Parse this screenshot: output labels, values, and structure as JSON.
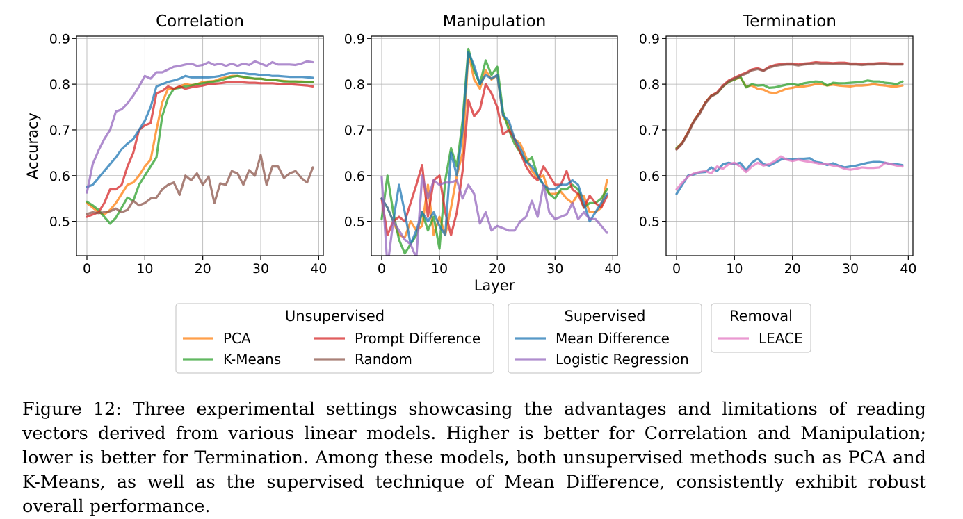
{
  "chart_data": [
    {
      "type": "line",
      "title": "Correlation",
      "xlabel": "",
      "ylabel": "Accuracy",
      "xlim": [
        -1.8,
        40.8
      ],
      "ylim": [
        0.425,
        0.905
      ],
      "xticks": [
        0,
        10,
        20,
        30,
        40
      ],
      "yticks": [
        0.5,
        0.6,
        0.7,
        0.8,
        0.9
      ],
      "ytick_labels": [
        "0.5",
        "0.6",
        "0.7",
        "0.8",
        "0.9"
      ],
      "grid": true,
      "series": [
        {
          "name": "PCA",
          "color": "#ff7f0e",
          "values": [
            0.54,
            0.53,
            0.52,
            0.515,
            0.525,
            0.54,
            0.56,
            0.58,
            0.585,
            0.6,
            0.62,
            0.635,
            0.7,
            0.76,
            0.79,
            0.79,
            0.795,
            0.8,
            0.798,
            0.8,
            0.805,
            0.806,
            0.807,
            0.812,
            0.815,
            0.818,
            0.818,
            0.815,
            0.813,
            0.812,
            0.812,
            0.81,
            0.81,
            0.808,
            0.807,
            0.806,
            0.806,
            0.806,
            0.805,
            0.805
          ]
        },
        {
          "name": "K-Means",
          "color": "#2ca02c",
          "values": [
            0.543,
            0.535,
            0.525,
            0.51,
            0.495,
            0.508,
            0.53,
            0.552,
            0.545,
            0.58,
            0.6,
            0.62,
            0.64,
            0.73,
            0.77,
            0.79,
            0.792,
            0.795,
            0.797,
            0.8,
            0.802,
            0.804,
            0.806,
            0.808,
            0.812,
            0.816,
            0.818,
            0.816,
            0.814,
            0.812,
            0.812,
            0.81,
            0.81,
            0.808,
            0.806,
            0.806,
            0.806,
            0.805,
            0.805,
            0.805
          ]
        },
        {
          "name": "Prompt Difference",
          "color": "#d62728",
          "values": [
            0.51,
            0.515,
            0.52,
            0.54,
            0.57,
            0.57,
            0.58,
            0.62,
            0.65,
            0.7,
            0.71,
            0.715,
            0.78,
            0.785,
            0.795,
            0.79,
            0.795,
            0.79,
            0.793,
            0.795,
            0.797,
            0.8,
            0.801,
            0.802,
            0.804,
            0.805,
            0.805,
            0.804,
            0.803,
            0.803,
            0.802,
            0.802,
            0.802,
            0.801,
            0.8,
            0.8,
            0.799,
            0.798,
            0.797,
            0.795
          ]
        },
        {
          "name": "Random",
          "color": "#8c564b",
          "values": [
            0.516,
            0.52,
            0.518,
            0.52,
            0.522,
            0.528,
            0.52,
            0.525,
            0.545,
            0.535,
            0.54,
            0.55,
            0.552,
            0.57,
            0.58,
            0.585,
            0.558,
            0.6,
            0.59,
            0.605,
            0.58,
            0.598,
            0.54,
            0.583,
            0.58,
            0.61,
            0.605,
            0.58,
            0.612,
            0.6,
            0.645,
            0.58,
            0.62,
            0.62,
            0.595,
            0.605,
            0.61,
            0.595,
            0.585,
            0.618
          ]
        },
        {
          "name": "Mean Difference",
          "color": "#1f77b4",
          "values": [
            0.575,
            0.58,
            0.595,
            0.61,
            0.625,
            0.64,
            0.658,
            0.67,
            0.68,
            0.7,
            0.72,
            0.75,
            0.795,
            0.8,
            0.805,
            0.808,
            0.812,
            0.818,
            0.815,
            0.815,
            0.815,
            0.815,
            0.816,
            0.818,
            0.822,
            0.825,
            0.825,
            0.824,
            0.822,
            0.822,
            0.82,
            0.82,
            0.818,
            0.818,
            0.817,
            0.816,
            0.816,
            0.816,
            0.815,
            0.814
          ]
        },
        {
          "name": "Logistic Regression",
          "color": "#9467bd",
          "values": [
            0.563,
            0.625,
            0.655,
            0.68,
            0.7,
            0.74,
            0.745,
            0.758,
            0.775,
            0.795,
            0.818,
            0.812,
            0.826,
            0.826,
            0.832,
            0.838,
            0.84,
            0.843,
            0.845,
            0.84,
            0.842,
            0.848,
            0.842,
            0.845,
            0.84,
            0.845,
            0.84,
            0.845,
            0.842,
            0.85,
            0.845,
            0.84,
            0.848,
            0.843,
            0.843,
            0.843,
            0.842,
            0.845,
            0.85,
            0.848
          ]
        }
      ]
    },
    {
      "type": "line",
      "title": "Manipulation",
      "xlabel": "Layer",
      "ylabel": "",
      "xlim": [
        -1.8,
        40.8
      ],
      "ylim": [
        0.425,
        0.905
      ],
      "xticks": [
        0,
        10,
        20,
        30,
        40
      ],
      "yticks": [
        0.5,
        0.6,
        0.7,
        0.8,
        0.9
      ],
      "ytick_labels": [
        "0.5",
        "0.6",
        "0.7",
        "0.8",
        "0.9"
      ],
      "grid": true,
      "series": [
        {
          "name": "PCA",
          "color": "#ff7f0e",
          "values": [
            0.55,
            0.53,
            0.5,
            0.47,
            0.465,
            0.5,
            0.48,
            0.49,
            0.58,
            0.47,
            0.51,
            0.47,
            0.53,
            0.6,
            0.65,
            0.87,
            0.81,
            0.79,
            0.83,
            0.81,
            0.82,
            0.73,
            0.71,
            0.68,
            0.67,
            0.64,
            0.61,
            0.595,
            0.6,
            0.56,
            0.56,
            0.565,
            0.55,
            0.54,
            0.56,
            0.555,
            0.52,
            0.52,
            0.53,
            0.59
          ]
        },
        {
          "name": "K-Means",
          "color": "#2ca02c",
          "values": [
            0.505,
            0.6,
            0.52,
            0.46,
            0.43,
            0.45,
            0.47,
            0.52,
            0.48,
            0.51,
            0.44,
            0.59,
            0.66,
            0.62,
            0.72,
            0.877,
            0.83,
            0.8,
            0.852,
            0.82,
            0.838,
            0.74,
            0.7,
            0.67,
            0.65,
            0.63,
            0.64,
            0.6,
            0.58,
            0.56,
            0.55,
            0.57,
            0.57,
            0.58,
            0.57,
            0.53,
            0.54,
            0.54,
            0.55,
            0.57
          ]
        },
        {
          "name": "Prompt Difference",
          "color": "#d62728",
          "values": [
            0.55,
            0.47,
            0.5,
            0.51,
            0.5,
            0.54,
            0.58,
            0.623,
            0.51,
            0.59,
            0.6,
            0.52,
            0.47,
            0.52,
            0.61,
            0.765,
            0.73,
            0.745,
            0.8,
            0.78,
            0.75,
            0.69,
            0.7,
            0.68,
            0.65,
            0.62,
            0.6,
            0.59,
            0.62,
            0.6,
            0.58,
            0.58,
            0.61,
            0.57,
            0.56,
            0.53,
            0.556,
            0.54,
            0.53,
            0.555
          ]
        },
        {
          "name": "Random",
          "color": "#8c564b",
          "values": []
        },
        {
          "name": "Mean Difference",
          "color": "#1f77b4",
          "values": [
            0.55,
            0.53,
            0.5,
            0.58,
            0.52,
            0.45,
            0.48,
            0.52,
            0.5,
            0.52,
            0.49,
            0.47,
            0.65,
            0.6,
            0.7,
            0.87,
            0.84,
            0.8,
            0.82,
            0.812,
            0.82,
            0.732,
            0.72,
            0.68,
            0.66,
            0.63,
            0.62,
            0.6,
            0.58,
            0.57,
            0.57,
            0.58,
            0.58,
            0.59,
            0.58,
            0.54,
            0.5,
            0.52,
            0.54,
            0.56
          ]
        },
        {
          "name": "Logistic Regression",
          "color": "#9467bd",
          "values": [
            0.597,
            0.4,
            0.5,
            0.48,
            0.46,
            0.45,
            0.42,
            0.6,
            0.55,
            0.59,
            0.58,
            0.585,
            0.585,
            0.59,
            0.55,
            0.58,
            0.56,
            0.495,
            0.52,
            0.48,
            0.49,
            0.485,
            0.48,
            0.48,
            0.5,
            0.51,
            0.545,
            0.51,
            0.58,
            0.52,
            0.505,
            0.51,
            0.515,
            0.54,
            0.505,
            0.52,
            0.505,
            0.505,
            0.49,
            0.475
          ]
        }
      ]
    },
    {
      "type": "line",
      "title": "Termination",
      "xlabel": "",
      "ylabel": "",
      "xlim": [
        -1.8,
        40.8
      ],
      "ylim": [
        0.425,
        0.905
      ],
      "xticks": [
        0,
        10,
        20,
        30,
        40
      ],
      "yticks": [
        0.5,
        0.6,
        0.7,
        0.8,
        0.9
      ],
      "ytick_labels": [
        "0.5",
        "0.6",
        "0.7",
        "0.8",
        "0.9"
      ],
      "grid": true,
      "series": [
        {
          "name": "PCA",
          "color": "#ff7f0e",
          "values": [
            0.66,
            0.672,
            0.695,
            0.72,
            0.738,
            0.76,
            0.775,
            0.78,
            0.795,
            0.805,
            0.81,
            0.815,
            0.795,
            0.797,
            0.79,
            0.788,
            0.782,
            0.78,
            0.785,
            0.79,
            0.792,
            0.795,
            0.795,
            0.797,
            0.8,
            0.8,
            0.797,
            0.799,
            0.797,
            0.796,
            0.795,
            0.797,
            0.797,
            0.798,
            0.8,
            0.798,
            0.797,
            0.795,
            0.795,
            0.797
          ]
        },
        {
          "name": "K-Means",
          "color": "#2ca02c",
          "values": [
            0.66,
            0.672,
            0.695,
            0.72,
            0.738,
            0.76,
            0.775,
            0.78,
            0.795,
            0.805,
            0.81,
            0.817,
            0.793,
            0.8,
            0.797,
            0.798,
            0.792,
            0.793,
            0.796,
            0.799,
            0.8,
            0.798,
            0.802,
            0.804,
            0.806,
            0.805,
            0.797,
            0.803,
            0.802,
            0.802,
            0.803,
            0.804,
            0.805,
            0.808,
            0.806,
            0.806,
            0.803,
            0.802,
            0.8,
            0.806
          ]
        },
        {
          "name": "Prompt Difference",
          "color": "#d62728",
          "values": [
            0.658,
            0.672,
            0.695,
            0.72,
            0.738,
            0.76,
            0.775,
            0.782,
            0.797,
            0.808,
            0.814,
            0.82,
            0.825,
            0.832,
            0.835,
            0.83,
            0.838,
            0.842,
            0.844,
            0.845,
            0.845,
            0.843,
            0.845,
            0.846,
            0.848,
            0.847,
            0.847,
            0.846,
            0.847,
            0.847,
            0.845,
            0.845,
            0.844,
            0.845,
            0.845,
            0.846,
            0.846,
            0.845,
            0.845,
            0.845
          ]
        },
        {
          "name": "Random",
          "color": "#8c564b",
          "values": [
            0.657,
            0.67,
            0.692,
            0.718,
            0.735,
            0.758,
            0.773,
            0.78,
            0.795,
            0.806,
            0.812,
            0.818,
            0.823,
            0.83,
            0.833,
            0.829,
            0.836,
            0.84,
            0.842,
            0.843,
            0.843,
            0.841,
            0.843,
            0.844,
            0.846,
            0.845,
            0.845,
            0.844,
            0.845,
            0.845,
            0.843,
            0.843,
            0.842,
            0.843,
            0.843,
            0.844,
            0.844,
            0.843,
            0.843,
            0.843
          ]
        },
        {
          "name": "Mean Difference",
          "color": "#1f77b4",
          "values": [
            0.56,
            0.58,
            0.6,
            0.603,
            0.607,
            0.608,
            0.618,
            0.61,
            0.625,
            0.628,
            0.625,
            0.628,
            0.612,
            0.628,
            0.637,
            0.625,
            0.622,
            0.628,
            0.635,
            0.637,
            0.635,
            0.637,
            0.637,
            0.638,
            0.63,
            0.628,
            0.623,
            0.627,
            0.622,
            0.618,
            0.62,
            0.622,
            0.625,
            0.628,
            0.63,
            0.63,
            0.628,
            0.625,
            0.625,
            0.623
          ]
        },
        {
          "name": "Logistic Regression",
          "color": "#9467bd",
          "values": []
        },
        {
          "name": "LEACE",
          "color": "#e377c2",
          "values": [
            0.57,
            0.585,
            0.598,
            0.605,
            0.608,
            0.61,
            0.605,
            0.62,
            0.615,
            0.625,
            0.628,
            0.62,
            0.608,
            0.62,
            0.628,
            0.622,
            0.625,
            0.632,
            0.642,
            0.635,
            0.632,
            0.635,
            0.632,
            0.63,
            0.628,
            0.625,
            0.625,
            0.622,
            0.62,
            0.615,
            0.613,
            0.615,
            0.618,
            0.617,
            0.617,
            0.618,
            0.628,
            0.625,
            0.622,
            0.62
          ]
        }
      ]
    }
  ],
  "legend": {
    "groups": [
      {
        "title": "Unsupervised",
        "items": [
          {
            "label": "PCA",
            "color": "#ff7f0e"
          },
          {
            "label": "Prompt Difference",
            "color": "#d62728"
          },
          {
            "label": "K-Means",
            "color": "#2ca02c"
          },
          {
            "label": "Random",
            "color": "#8c564b"
          }
        ]
      },
      {
        "title": "Supervised",
        "items": [
          {
            "label": "Mean Difference",
            "color": "#1f77b4"
          },
          {
            "label": "Logistic Regression",
            "color": "#9467bd"
          }
        ]
      },
      {
        "title": "Removal",
        "items": [
          {
            "label": "LEACE",
            "color": "#e377c2"
          }
        ]
      }
    ]
  },
  "caption": "Figure 12: Three experimental settings showcasing the advantages and limitations of reading vectors derived from various linear models. Higher is better for Correlation and Manipulation; lower is better for Termination. Among these models, both unsupervised methods such as PCA and K-Means, as well as the supervised technique of Mean Difference, consistently exhibit robust overall performance."
}
